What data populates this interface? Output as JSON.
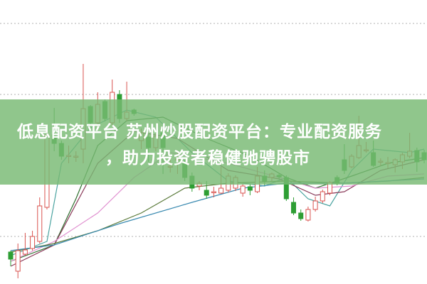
{
  "banner": {
    "title_line1": "低息配资平台 苏州炒股配资平台：专业配资服务",
    "title_line2": "，助力投资者稳健驰骋股市",
    "color": "#78b973"
  },
  "chart_data": {
    "type": "candlestick",
    "title": "",
    "xlabel": "",
    "ylabel": "",
    "ylim": [
      3.3,
      43.3
    ],
    "gridlines": [
      40,
      30,
      10
    ],
    "grid": "horizontal dotted",
    "colors": {
      "up": "#d9534f",
      "down": "#2e9e34",
      "grid": "#b0b0b0"
    },
    "candles_ohlc": [
      [
        7.8,
        6.8,
        8.0,
        5.8
      ],
      [
        5.1,
        8.0,
        9.0,
        4.1
      ],
      [
        7.5,
        8.1,
        10.5,
        7.3
      ],
      [
        8.3,
        10.0,
        10.8,
        8.0
      ],
      [
        9.3,
        14.3,
        15.5,
        9.0
      ],
      [
        14.1,
        24.3,
        25.1,
        13.8
      ],
      [
        24.3,
        23.1,
        28.1,
        22.0
      ],
      [
        23.1,
        21.3,
        23.5,
        20.8
      ],
      [
        21.3,
        21.4,
        22.8,
        20.3
      ],
      [
        21.2,
        21.3,
        22.0,
        20.5
      ],
      [
        22.3,
        28.0,
        34.3,
        20.3
      ],
      [
        28.3,
        26.0,
        28.5,
        25.5
      ],
      [
        26.0,
        28.6,
        30.3,
        25.5
      ],
      [
        29.0,
        26.6,
        29.3,
        26.2
      ],
      [
        26.0,
        30.3,
        32.1,
        25.6
      ],
      [
        30.0,
        26.6,
        30.6,
        26.0
      ],
      [
        26.6,
        27.5,
        31.8,
        26.2
      ],
      [
        27.8,
        27.3,
        28.0,
        27.0
      ],
      [
        23.5,
        24.6,
        25.2,
        22.3
      ],
      [
        24.0,
        22.5,
        24.4,
        20.5
      ],
      [
        22.5,
        24.1,
        24.5,
        22.0
      ],
      [
        24.6,
        22.5,
        25.0,
        18.8
      ],
      [
        19.8,
        19.9,
        21.0,
        19.0
      ],
      [
        20.8,
        20.9,
        21.8,
        18.8
      ],
      [
        20.3,
        18.3,
        20.8,
        17.8
      ],
      [
        18.5,
        16.8,
        19.0,
        16.3
      ],
      [
        17.1,
        17.5,
        17.8,
        16.5
      ],
      [
        16.5,
        15.8,
        17.8,
        15.3
      ],
      [
        16.3,
        16.3,
        17.0,
        15.5
      ],
      [
        16.1,
        16.8,
        19.8,
        16.0
      ],
      [
        16.5,
        18.5,
        18.9,
        16.2
      ],
      [
        16.8,
        18.3,
        18.6,
        16.4
      ],
      [
        16.1,
        17.1,
        17.4,
        15.6
      ],
      [
        17.0,
        16.5,
        17.3,
        15.8
      ],
      [
        16.3,
        18.5,
        19.8,
        16.1
      ],
      [
        18.5,
        17.8,
        19.3,
        17.2
      ],
      [
        18.3,
        18.8,
        19.0,
        17.8
      ],
      [
        18.6,
        18.4,
        18.9,
        18.1
      ],
      [
        18.3,
        15.3,
        18.6,
        15.0
      ],
      [
        14.8,
        13.3,
        15.5,
        13.0
      ],
      [
        13.3,
        12.5,
        13.8,
        12.2
      ],
      [
        12.3,
        13.8,
        14.2,
        12.1
      ],
      [
        13.8,
        15.0,
        15.6,
        13.5
      ],
      [
        15.0,
        16.3,
        16.6,
        14.7
      ],
      [
        16.1,
        17.6,
        17.8,
        15.8
      ],
      [
        18.3,
        17.5,
        18.6,
        17.2
      ],
      [
        20.8,
        19.3,
        23.0,
        18.8
      ],
      [
        19.8,
        21.3,
        21.6,
        19.6
      ],
      [
        21.1,
        22.8,
        27.0,
        20.9
      ],
      [
        22.1,
        22.2,
        23.3,
        21.8
      ],
      [
        21.8,
        20.0,
        23.5,
        19.8
      ],
      [
        20.5,
        20.6,
        21.0,
        19.9
      ],
      [
        20.4,
        20.4,
        21.2,
        19.6
      ],
      [
        20.1,
        20.8,
        21.0,
        19.0
      ],
      [
        20.5,
        21.5,
        21.8,
        19.5
      ],
      [
        21.3,
        22.0,
        24.6,
        21.0
      ],
      [
        22.1,
        20.5,
        22.5,
        19.1
      ],
      [
        21.8,
        20.8,
        22.2,
        20.3
      ]
    ],
    "ma_lines": [
      {
        "color": "#4aa3a0",
        "points": [
          [
            0,
            7.3
          ],
          [
            5,
            9.3
          ],
          [
            7,
            20.3
          ],
          [
            11,
            25.3
          ],
          [
            16,
            27.8
          ],
          [
            20,
            26.8
          ],
          [
            25,
            21.8
          ],
          [
            30,
            17.8
          ],
          [
            35,
            17.1
          ],
          [
            38,
            18.3
          ],
          [
            41,
            15.3
          ],
          [
            44,
            14.3
          ],
          [
            47,
            19.3
          ],
          [
            50,
            22.3
          ],
          [
            55,
            21.8
          ],
          [
            57,
            22.3
          ]
        ]
      },
      {
        "color": "#2f6f2f",
        "points": [
          [
            0,
            6.5
          ],
          [
            6,
            8.8
          ],
          [
            9,
            15.3
          ],
          [
            12,
            22.8
          ],
          [
            16,
            26.3
          ],
          [
            21,
            26.8
          ],
          [
            27,
            23.8
          ],
          [
            33,
            21.3
          ],
          [
            38,
            18.3
          ],
          [
            42,
            16.8
          ],
          [
            47,
            18.5
          ],
          [
            52,
            20.3
          ],
          [
            57,
            21.1
          ]
        ]
      },
      {
        "color": "#8a3a5a",
        "points": [
          [
            0,
            5.8
          ],
          [
            6,
            8.8
          ],
          [
            12,
            20.3
          ],
          [
            17,
            24.8
          ],
          [
            23,
            23.8
          ],
          [
            30,
            19.3
          ],
          [
            37,
            18.1
          ],
          [
            42,
            15.8
          ],
          [
            46,
            16.3
          ],
          [
            51,
            19.3
          ],
          [
            57,
            20.8
          ]
        ]
      },
      {
        "color": "#e090d0",
        "points": [
          [
            0,
            6.5
          ],
          [
            6,
            9.3
          ],
          [
            12,
            13.3
          ],
          [
            17,
            18.3
          ],
          [
            22,
            21.8
          ],
          [
            30,
            20.3
          ],
          [
            37,
            18.3
          ],
          [
            42,
            16.8
          ],
          [
            47,
            17.1
          ],
          [
            52,
            18.5
          ],
          [
            57,
            18.8
          ]
        ]
      },
      {
        "color": "#5a7a3a",
        "points": [
          [
            0,
            7.8
          ],
          [
            6,
            9.0
          ],
          [
            12,
            10.8
          ],
          [
            18,
            13.3
          ],
          [
            24,
            16.8
          ],
          [
            30,
            17.5
          ],
          [
            38,
            17.8
          ],
          [
            46,
            17.5
          ],
          [
            52,
            17.8
          ],
          [
            57,
            18.3
          ]
        ]
      },
      {
        "color": "#3a8ab0",
        "points": [
          [
            0,
            8.0
          ],
          [
            6,
            8.8
          ],
          [
            15,
            11.8
          ],
          [
            25,
            14.8
          ],
          [
            32,
            16.8
          ],
          [
            38,
            17.5
          ],
          [
            46,
            17.5
          ],
          [
            57,
            18.1
          ]
        ]
      }
    ]
  }
}
